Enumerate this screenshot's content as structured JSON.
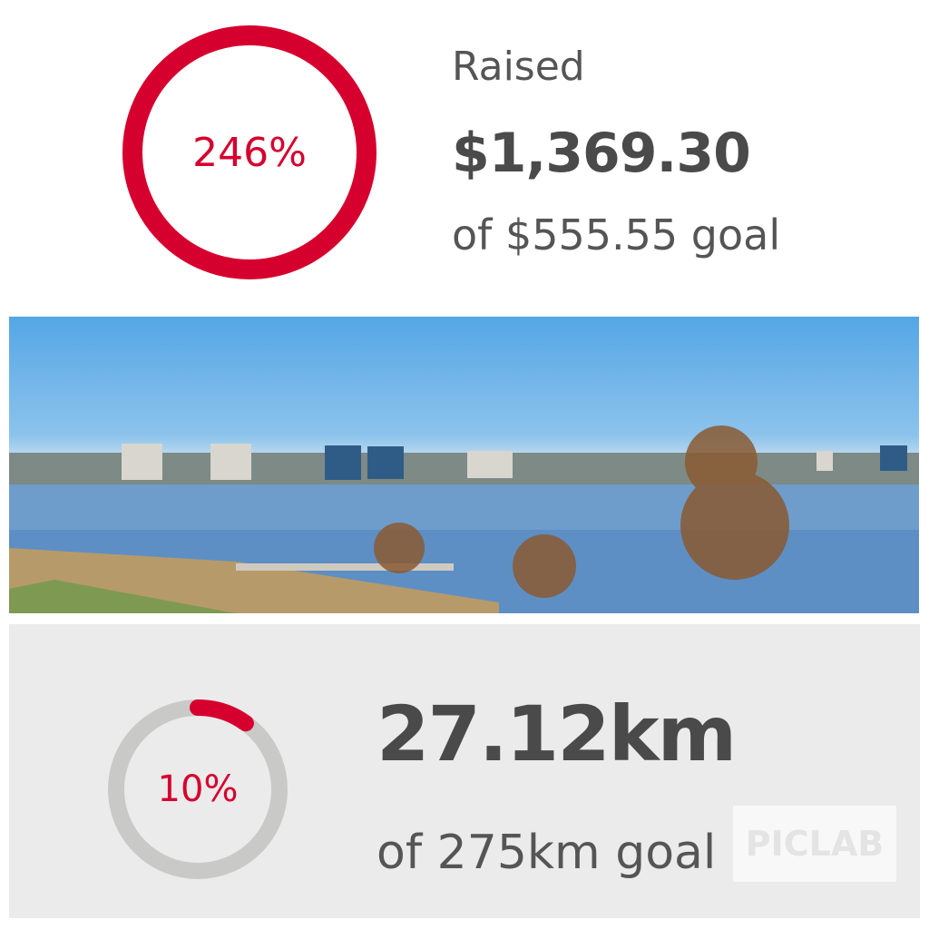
{
  "funds": {
    "percent_label": "246%",
    "percent": 246,
    "label": "Raised",
    "amount": "$1,369.30",
    "goal": "of $555.55 goal"
  },
  "distance": {
    "percent_label": "10%",
    "percent": 10,
    "amount": "27.12km",
    "goal": "of 275km goal"
  },
  "watermark": "PICLAB",
  "colors": {
    "accent": "#d6002e",
    "track": "#c9cac8",
    "panel": "#ebebeb",
    "text": "#4a4a4a"
  }
}
